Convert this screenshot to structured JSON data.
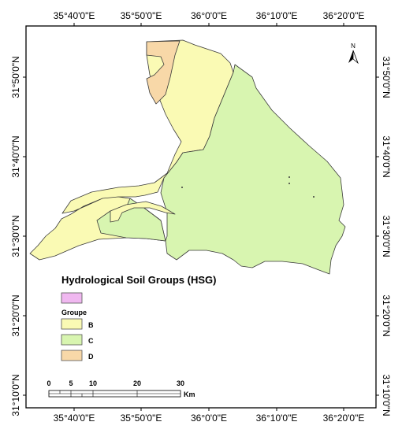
{
  "map": {
    "top_ticks": [
      "35°40'0\"E",
      "35°50'0\"E",
      "36°0'0\"E",
      "36°10'0\"E",
      "36°20'0\"E"
    ],
    "bottom_ticks": [
      "35°40'0\"E",
      "35°50'0\"E",
      "36°0'0\"E",
      "36°10'0\"E",
      "36°20'0\"E"
    ],
    "left_ticks": [
      "31°50'0\"N",
      "31°40'0\"N",
      "31°30'0\"N",
      "31°20'0\"N",
      "31°10'0\"N"
    ],
    "right_ticks": [
      "31°50'0\"N",
      "31°40'0\"N",
      "31°30'0\"N",
      "31°20'0\"N",
      "31°10'0\"N"
    ],
    "north_label": "N"
  },
  "legend": {
    "title": "Hydrological Soil Groups (HSG)",
    "group_heading": "Groupe",
    "items": [
      {
        "label": "",
        "color": "#f0b8f0"
      },
      {
        "label": "B",
        "color": "#fafab4"
      },
      {
        "label": "C",
        "color": "#d8f5b0"
      },
      {
        "label": "D",
        "color": "#f8d8a8"
      }
    ]
  },
  "scalebar": {
    "ticks": [
      "0",
      "5",
      "10",
      "20",
      "30"
    ],
    "unit": "Km"
  },
  "colors": {
    "frame": "#000000",
    "B": "#fafab4",
    "C": "#d8f5b0",
    "D": "#f8d8a8",
    "boundary": "#3a3a3a"
  }
}
